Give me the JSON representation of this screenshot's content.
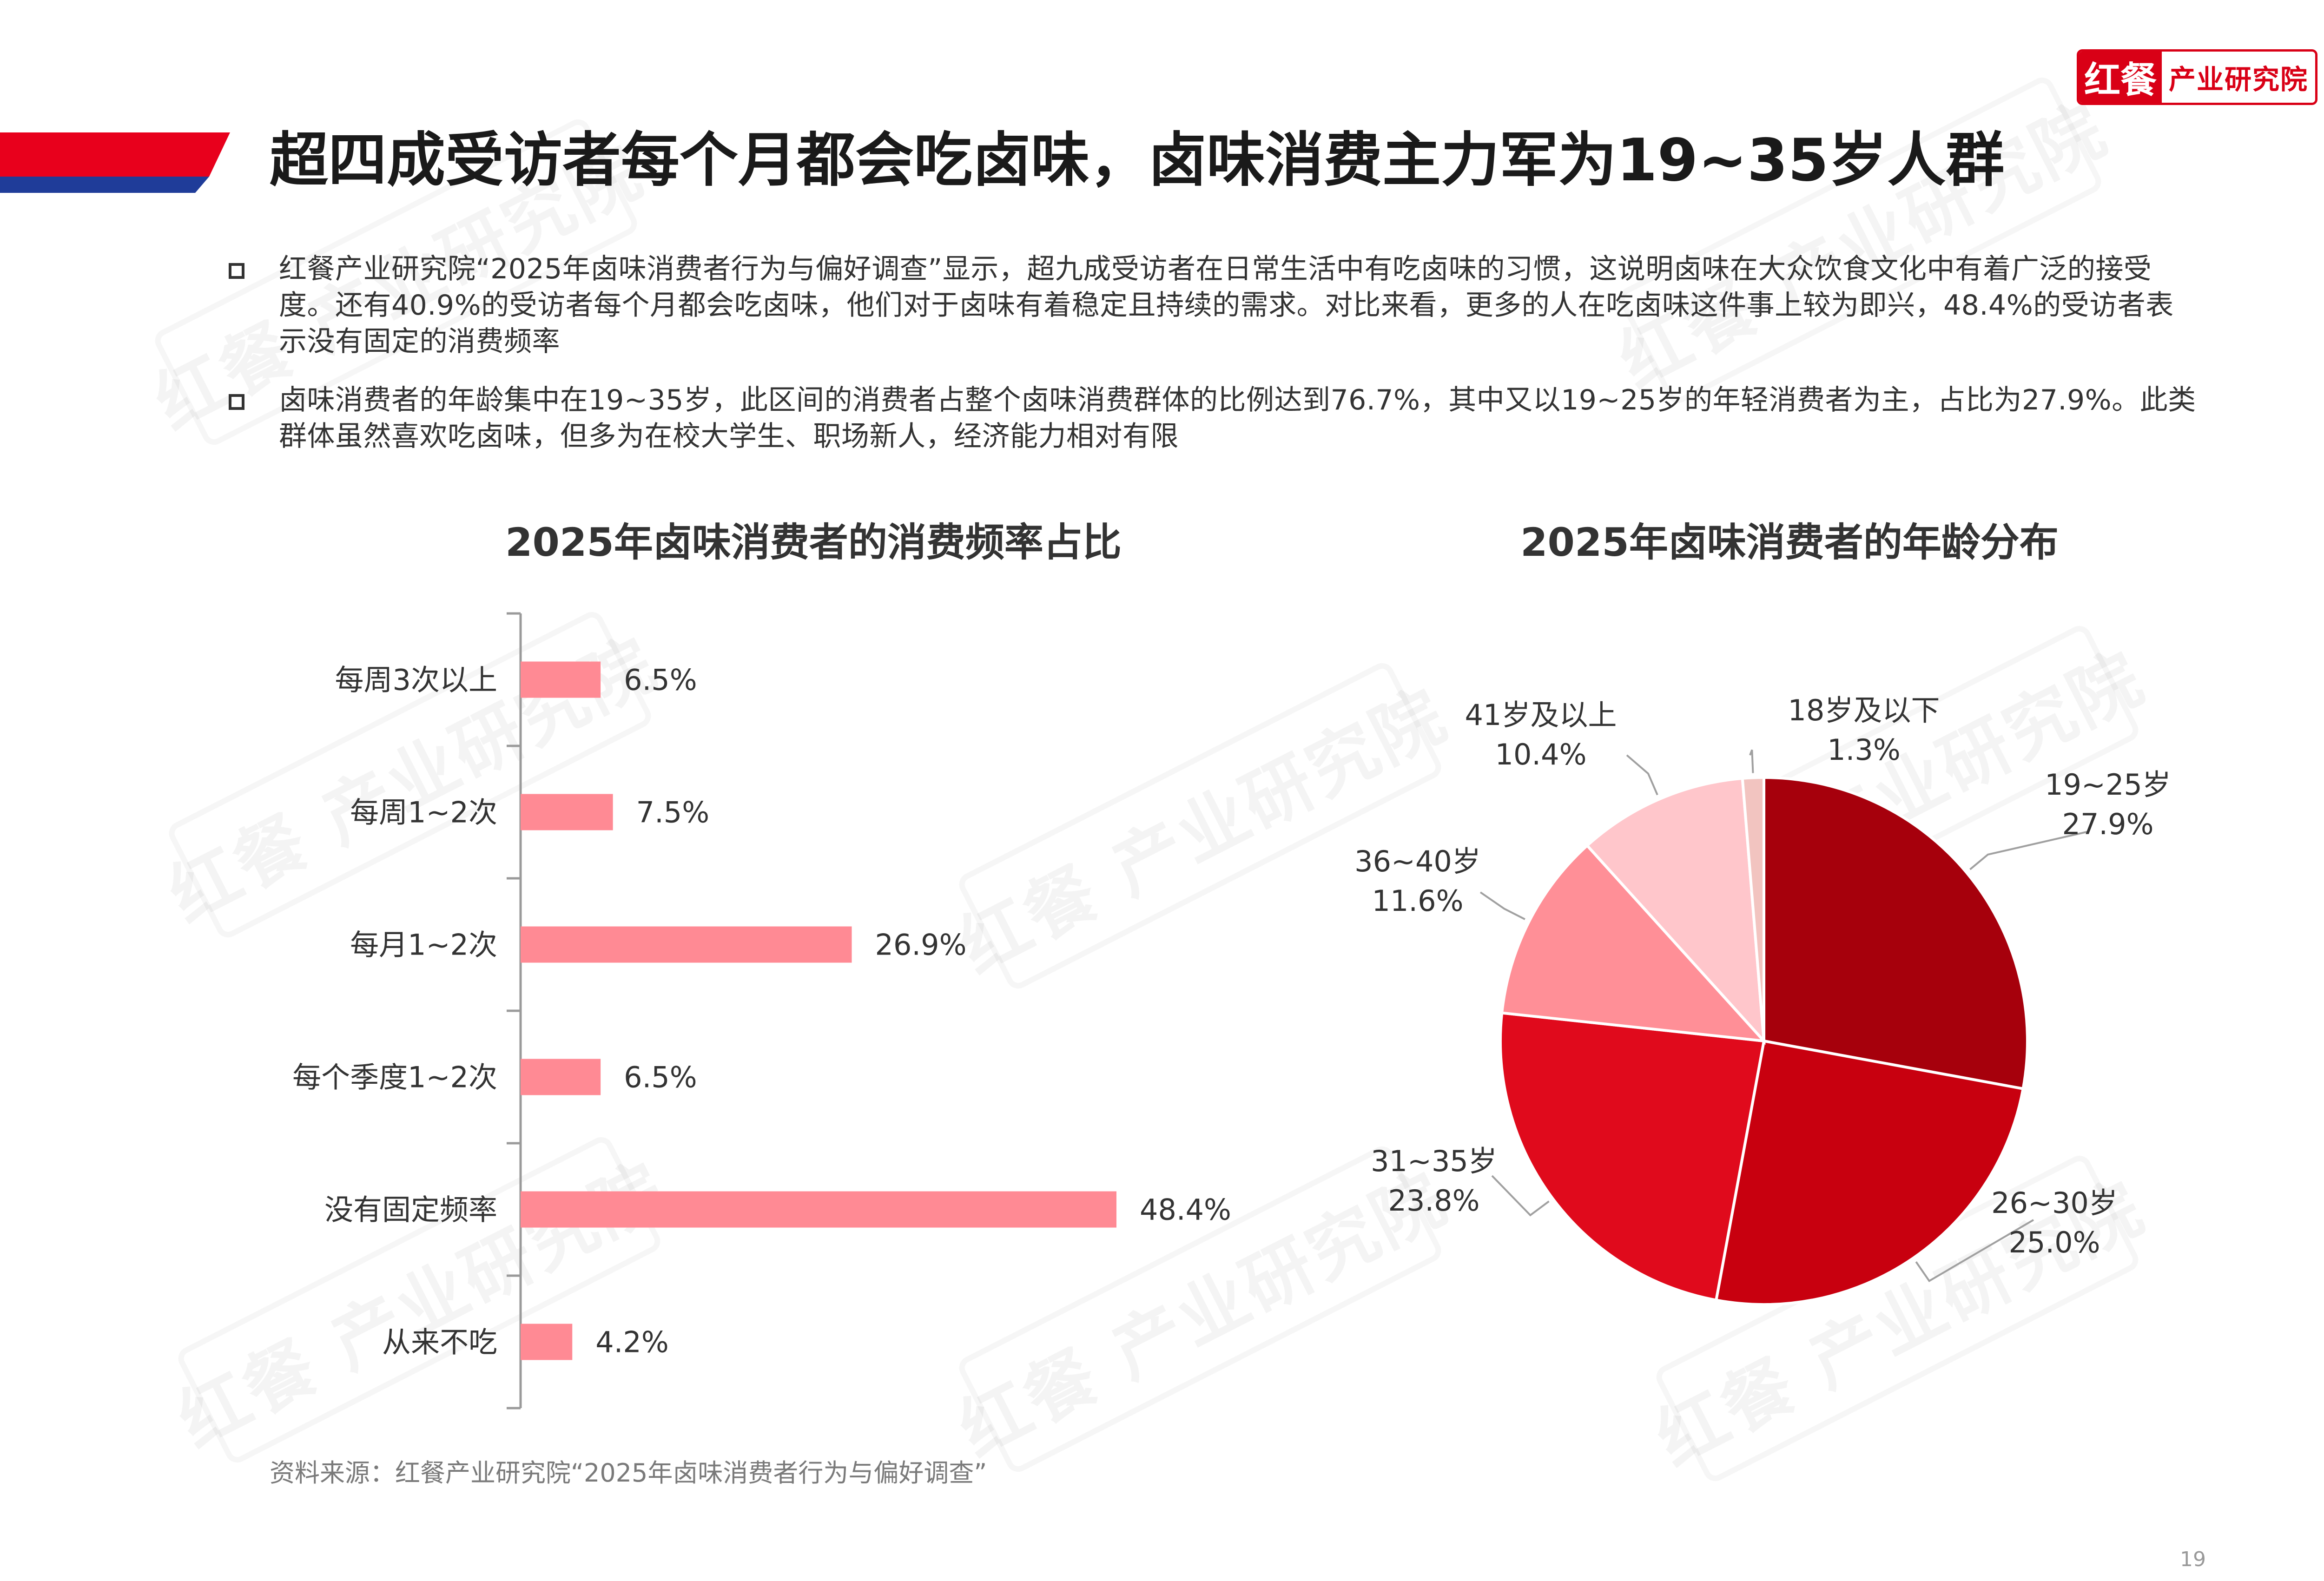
{
  "brand": {
    "logo_mark": "红餐",
    "logo_text": "产业研究院",
    "watermark": "红餐 产业研究院"
  },
  "colors": {
    "accent_red": "#e8001c",
    "accent_blue": "#1f3c99",
    "bar_pink": "#ff8a94"
  },
  "page": {
    "title": "超四成受访者每个月都会吃卤味，卤味消费主力军为19~35岁人群",
    "bullets": [
      {
        "icon": "square-bullet-icon",
        "text": "红餐产业研究院“2025年卤味消费者行为与偏好调查”显示，超九成受访者在日常生活中有吃卤味的习惯，这说明卤味在大众饮食文化中有着广泛的接受度。还有40.9%的受访者每个月都会吃卤味，他们对于卤味有着稳定且持续的需求。对比来看，更多的人在吃卤味这件事上较为即兴，48.4%的受访者表示没有固定的消费频率"
      },
      {
        "icon": "square-bullet-icon",
        "text": "卤味消费者的年龄集中在19~35岁，此区间的消费者占整个卤味消费群体的比例达到76.7%，其中又以19~25岁的年轻消费者为主，占比为27.9%。此类群体虽然喜欢吃卤味，但多为在校大学生、职场新人，经济能力相对有限"
      }
    ],
    "source": "资料来源：红餐产业研究院“2025年卤味消费者行为与偏好调查”",
    "page_number": "19"
  },
  "chart_data": [
    {
      "type": "bar",
      "orientation": "horizontal",
      "title": "2025年卤味消费者的消费频率占比",
      "categories": [
        "每周3次以上",
        "每周1~2次",
        "每月1~2次",
        "每个季度1~2次",
        "没有固定频率",
        "从来不吃"
      ],
      "values": [
        6.5,
        7.5,
        26.9,
        6.5,
        48.4,
        4.2
      ],
      "value_labels": [
        "6.5%",
        "7.5%",
        "26.9%",
        "6.5%",
        "48.4%",
        "4.2%"
      ],
      "unit": "%",
      "xlim": [
        0,
        50
      ],
      "color": "#ff8a94",
      "grid": false
    },
    {
      "type": "pie",
      "title": "2025年卤味消费者的年龄分布",
      "slices": [
        {
          "label": "19~25岁",
          "value": 27.9,
          "value_label": "27.9%",
          "color": "#a6000c"
        },
        {
          "label": "26~30岁",
          "value": 25.0,
          "value_label": "25.0%",
          "color": "#c8000f"
        },
        {
          "label": "31~35岁",
          "value": 23.8,
          "value_label": "23.8%",
          "color": "#e00a1c"
        },
        {
          "label": "36~40岁",
          "value": 11.6,
          "value_label": "11.6%",
          "color": "#ff8f97"
        },
        {
          "label": "41岁及以上",
          "value": 10.4,
          "value_label": "10.4%",
          "color": "#ffc6cb"
        },
        {
          "label": "18岁及以下",
          "value": 1.3,
          "value_label": "1.3%",
          "color": "#f2c4c0"
        }
      ],
      "start_angle": "12 o'clock",
      "direction": "clockwise"
    }
  ]
}
